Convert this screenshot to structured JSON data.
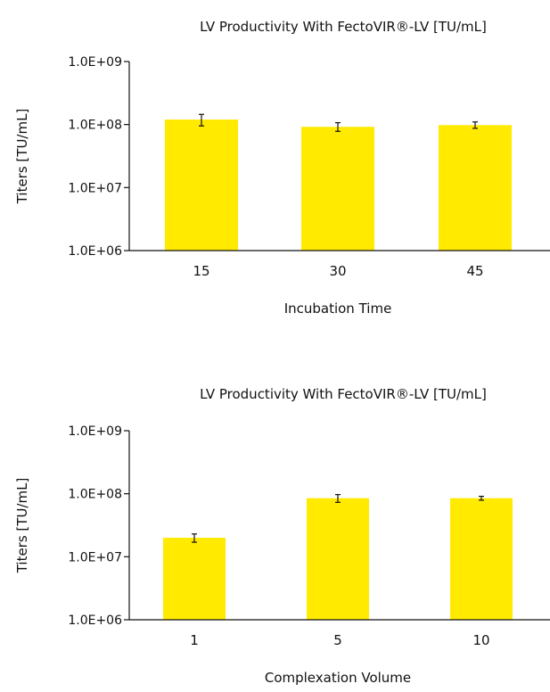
{
  "chart_data": [
    {
      "type": "bar",
      "title": "LV Productivity With FectoVIR®-LV [TU/mL]",
      "xlabel": "Incubation Time",
      "ylabel": "Titers [TU/mL]",
      "categories": [
        "15",
        "30",
        "45"
      ],
      "values": [
        120000000,
        92000000,
        98000000
      ],
      "error_low": [
        95000000,
        78000000,
        87000000
      ],
      "error_high": [
        145000000,
        107000000,
        110000000
      ],
      "y_scale": "log",
      "ylim": [
        1000000,
        1000000000
      ],
      "yticks": [
        "1.0E+06",
        "1.0E+07",
        "1.0E+08",
        "1.0E+09"
      ],
      "bar_color": "#FFEA00",
      "grid": false,
      "legend": "none"
    },
    {
      "type": "bar",
      "title": "LV Productivity With FectoVIR®-LV [TU/mL]",
      "xlabel": "Complexation Volume",
      "ylabel": "Titers [TU/mL]",
      "categories": [
        "1",
        "5",
        "10"
      ],
      "values": [
        20000000,
        85000000,
        85000000
      ],
      "error_low": [
        17000000,
        73000000,
        79000000
      ],
      "error_high": [
        23000000,
        97000000,
        91000000
      ],
      "y_scale": "log",
      "ylim": [
        1000000,
        1000000000
      ],
      "yticks": [
        "1.0E+06",
        "1.0E+07",
        "1.0E+08",
        "1.0E+09"
      ],
      "bar_color": "#FFEA00",
      "grid": false,
      "legend": "none"
    }
  ]
}
